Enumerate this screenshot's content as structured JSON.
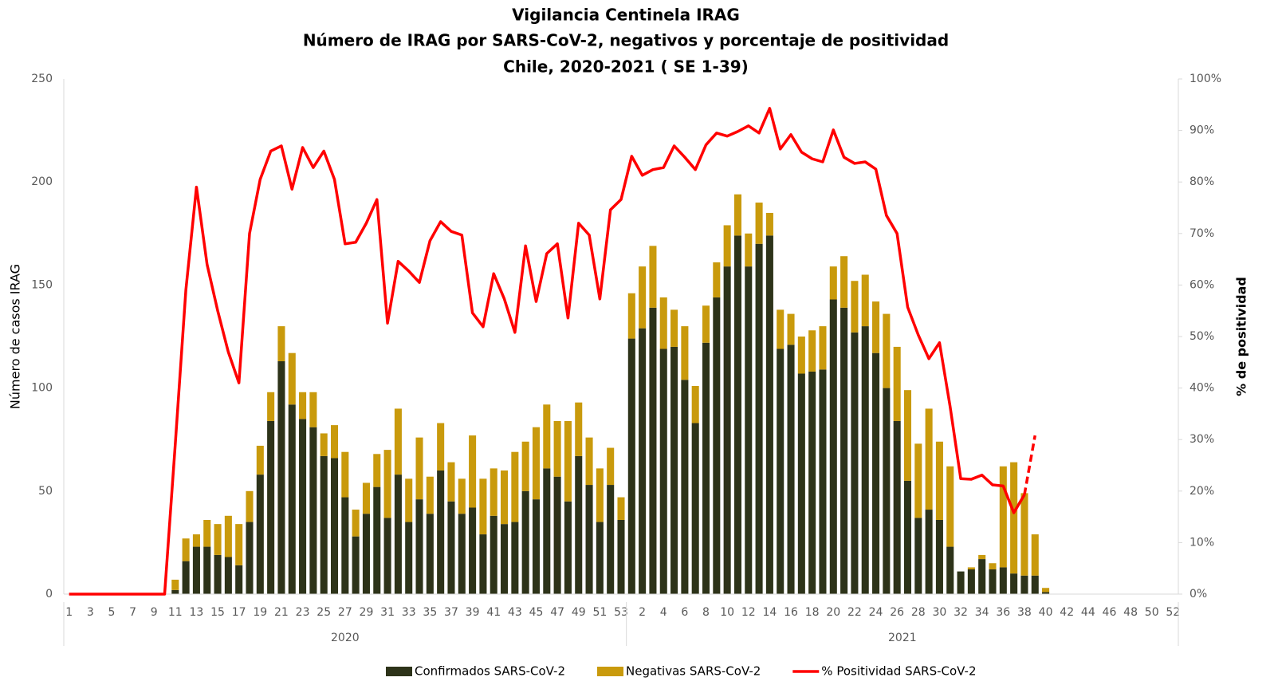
{
  "chart_data": {
    "type": "bar-line",
    "title": [
      "Vigilancia Centinela IRAG",
      "Número de IRAG por SARS-CoV-2,  negativos y porcentaje de positividad",
      "Chile, 2020-2021 ( SE 1-39)"
    ],
    "y_label": "Número de casos IRAG",
    "y2_label": "% de positividad",
    "x_groups": [
      "2020",
      "2021"
    ],
    "categories": [
      "1",
      null,
      "3",
      null,
      "5",
      null,
      "7",
      null,
      "9",
      null,
      "11",
      null,
      "13",
      null,
      "15",
      null,
      "17",
      null,
      "19",
      null,
      "21",
      null,
      "23",
      null,
      "25",
      null,
      "27",
      null,
      "29",
      null,
      "31",
      null,
      "33",
      null,
      "35",
      null,
      "37",
      null,
      "39",
      null,
      "41",
      null,
      "43",
      null,
      "45",
      null,
      "47",
      null,
      "49",
      null,
      "51",
      null,
      "53",
      null,
      "2",
      null,
      "4",
      null,
      "6",
      null,
      "8",
      null,
      "10",
      null,
      "12",
      null,
      "14",
      null,
      "16",
      null,
      "18",
      null,
      "20",
      null,
      "22",
      null,
      "24",
      null,
      "26",
      null,
      "28",
      null,
      "30",
      null,
      "32",
      null,
      "34",
      null,
      "36",
      null,
      "38",
      null,
      "40",
      null,
      "42",
      null,
      "44",
      null,
      "46",
      null,
      "48",
      null,
      "50",
      null,
      "52"
    ],
    "series": [
      {
        "name": "Confirmados SARS-CoV-2",
        "type": "bar",
        "color": "#2d3319",
        "values": [
          0,
          0,
          0,
          0,
          0,
          0,
          0,
          0,
          0,
          0,
          2,
          16,
          23,
          23,
          19,
          18,
          14,
          35,
          58,
          84,
          113,
          92,
          85,
          81,
          67,
          66,
          47,
          28,
          39,
          52,
          37,
          58,
          35,
          46,
          39,
          60,
          45,
          39,
          42,
          29,
          38,
          34,
          35,
          50,
          46,
          61,
          57,
          45,
          67,
          53,
          35,
          53,
          36,
          124,
          129,
          139,
          119,
          120,
          104,
          83,
          122,
          144,
          159,
          174,
          159,
          170,
          174,
          119,
          121,
          107,
          108,
          109,
          143,
          139,
          127,
          130,
          117,
          100,
          84,
          55,
          37,
          41,
          36,
          23,
          11,
          12,
          17,
          12,
          13,
          10,
          9,
          9,
          1,
          null,
          null,
          null,
          null,
          null,
          null,
          null,
          null,
          null,
          null,
          null,
          null
        ]
      },
      {
        "name": "Negativas SARS-CoV-2",
        "type": "bar",
        "color": "#c99a0c",
        "values": [
          0,
          0,
          0,
          0,
          0,
          0,
          0,
          0,
          0,
          0,
          5,
          11,
          6,
          13,
          15,
          20,
          20,
          15,
          14,
          14,
          17,
          25,
          13,
          17,
          11,
          16,
          22,
          13,
          15,
          16,
          33,
          32,
          21,
          30,
          18,
          23,
          19,
          17,
          35,
          27,
          23,
          26,
          34,
          24,
          35,
          31,
          27,
          39,
          26,
          23,
          26,
          18,
          11,
          22,
          30,
          30,
          25,
          18,
          26,
          18,
          18,
          17,
          20,
          20,
          16,
          20,
          11,
          19,
          15,
          18,
          20,
          21,
          16,
          25,
          25,
          25,
          25,
          36,
          36,
          44,
          36,
          49,
          38,
          39,
          0,
          1,
          2,
          3,
          49,
          54,
          40,
          20,
          2,
          null,
          null,
          null,
          null,
          null,
          null,
          null,
          null,
          null,
          null,
          null,
          null
        ]
      },
      {
        "name": "% Positividad SARS-CoV-2",
        "type": "line",
        "axis": "y2",
        "color": "#ff0000",
        "dashed_tail": 1,
        "values": [
          0,
          0,
          0,
          0,
          0,
          0,
          0,
          0,
          0,
          0,
          29,
          59,
          79,
          64,
          55,
          47,
          41,
          70,
          80.5,
          86,
          87,
          78.6,
          86.7,
          82.8,
          86,
          80.5,
          68,
          68.3,
          72,
          76.6,
          52.6,
          64.6,
          62.7,
          60.5,
          68.6,
          72.3,
          70.4,
          69.7,
          54.6,
          51.9,
          62.2,
          57.3,
          50.8,
          67.6,
          56.8,
          66.1,
          68,
          53.6,
          72,
          69.7,
          57.3,
          74.6,
          76.6,
          85,
          81.3,
          82.4,
          82.8,
          87,
          84.8,
          82.4,
          87.2,
          89.5,
          88.9,
          89.8,
          90.9,
          89.5,
          94.3,
          86.4,
          89.2,
          85.8,
          84.5,
          83.9,
          90.1,
          84.8,
          83.6,
          83.9,
          82.5,
          73.5,
          70,
          55.7,
          50.3,
          45.7,
          48.8,
          36.4,
          22.4,
          22.3,
          23.1,
          21.2,
          21,
          15.8,
          19.3,
          30.8,
          null,
          null,
          null,
          null,
          null,
          null,
          null,
          null,
          null,
          null,
          null,
          null,
          null
        ]
      }
    ],
    "ylim": [
      0,
      250
    ],
    "yticks": [
      0,
      50,
      100,
      150,
      200,
      250
    ],
    "y2lim": [
      0,
      100
    ],
    "y2ticks": [
      {
        "value": 0,
        "label": "0%"
      },
      {
        "value": 10,
        "label": "10%"
      },
      {
        "value": 20,
        "label": "20%"
      },
      {
        "value": 30,
        "label": "30%"
      },
      {
        "value": 40,
        "label": "40%"
      },
      {
        "value": 50,
        "label": "50%"
      },
      {
        "value": 60,
        "label": "60%"
      },
      {
        "value": 70,
        "label": "70%"
      },
      {
        "value": 80,
        "label": "80%"
      },
      {
        "value": 90,
        "label": "90%"
      },
      {
        "value": 100,
        "label": "100%"
      }
    ],
    "legend": "bottom"
  }
}
